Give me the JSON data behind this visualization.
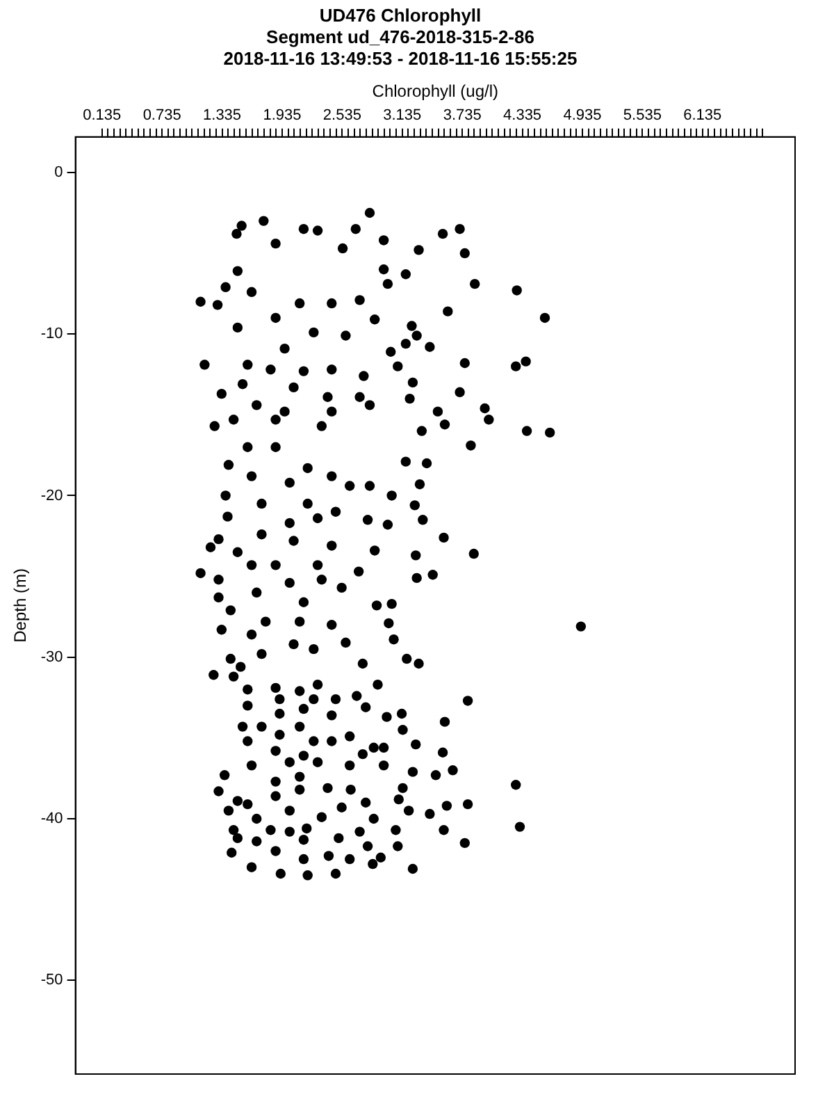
{
  "chart_data": {
    "type": "scatter",
    "title": "UD476 Chlorophyll",
    "subtitle": "Segment ud_476-2018-315-2-86\n2018-11-16 13:49:53 - 2018-11-16 15:55:25",
    "xlabel": "Chlorophyll (ug/l)",
    "ylabel": "Depth (m)",
    "xlim": [
      -0.13,
      7.06
    ],
    "ylim": [
      -55.8,
      2.2
    ],
    "xticks": [
      0.135,
      {
        "value": 0.195,
        "label": null
      },
      {
        "value": 0.255,
        "label": null
      },
      {
        "value": 0.315,
        "label": null
      },
      {
        "value": 0.375,
        "label": null
      },
      {
        "value": 0.435,
        "label": null
      },
      {
        "value": 0.495,
        "label": null
      },
      {
        "value": 0.555,
        "label": null
      },
      {
        "value": 0.615,
        "label": null
      },
      {
        "value": 0.675,
        "label": null
      },
      0.735,
      {
        "value": 0.795,
        "label": null
      },
      {
        "value": 0.855,
        "label": null
      },
      {
        "value": 0.915,
        "label": null
      },
      {
        "value": 0.975,
        "label": null
      },
      {
        "value": 1.035,
        "label": null
      },
      {
        "value": 1.095,
        "label": null
      },
      {
        "value": 1.155,
        "label": null
      },
      {
        "value": 1.215,
        "label": null
      },
      {
        "value": 1.275,
        "label": null
      },
      1.335,
      {
        "value": 1.395,
        "label": null
      },
      {
        "value": 1.455,
        "label": null
      },
      {
        "value": 1.515,
        "label": null
      },
      {
        "value": 1.575,
        "label": null
      },
      {
        "value": 1.635,
        "label": null
      },
      {
        "value": 1.695,
        "label": null
      },
      {
        "value": 1.755,
        "label": null
      },
      {
        "value": 1.815,
        "label": null
      },
      {
        "value": 1.875,
        "label": null
      },
      1.935,
      {
        "value": 1.995,
        "label": null
      },
      {
        "value": 2.055,
        "label": null
      },
      {
        "value": 2.115,
        "label": null
      },
      {
        "value": 2.175,
        "label": null
      },
      {
        "value": 2.235,
        "label": null
      },
      {
        "value": 2.295,
        "label": null
      },
      {
        "value": 2.355,
        "label": null
      },
      {
        "value": 2.415,
        "label": null
      },
      {
        "value": 2.475,
        "label": null
      },
      2.535,
      {
        "value": 2.595,
        "label": null
      },
      {
        "value": 2.655,
        "label": null
      },
      {
        "value": 2.715,
        "label": null
      },
      {
        "value": 2.775,
        "label": null
      },
      {
        "value": 2.835,
        "label": null
      },
      {
        "value": 2.895,
        "label": null
      },
      {
        "value": 2.955,
        "label": null
      },
      {
        "value": 3.015,
        "label": null
      },
      {
        "value": 3.075,
        "label": null
      },
      3.135,
      {
        "value": 3.195,
        "label": null
      },
      {
        "value": 3.255,
        "label": null
      },
      {
        "value": 3.315,
        "label": null
      },
      {
        "value": 3.375,
        "label": null
      },
      {
        "value": 3.435,
        "label": null
      },
      {
        "value": 3.495,
        "label": null
      },
      {
        "value": 3.555,
        "label": null
      },
      {
        "value": 3.615,
        "label": null
      },
      {
        "value": 3.675,
        "label": null
      },
      3.735,
      {
        "value": 3.795,
        "label": null
      },
      {
        "value": 3.855,
        "label": null
      },
      {
        "value": 3.915,
        "label": null
      },
      {
        "value": 3.975,
        "label": null
      },
      {
        "value": 4.035,
        "label": null
      },
      {
        "value": 4.095,
        "label": null
      },
      {
        "value": 4.155,
        "label": null
      },
      {
        "value": 4.215,
        "label": null
      },
      {
        "value": 4.275,
        "label": null
      },
      4.335,
      {
        "value": 4.395,
        "label": null
      },
      {
        "value": 4.455,
        "label": null
      },
      {
        "value": 4.515,
        "label": null
      },
      {
        "value": 4.575,
        "label": null
      },
      {
        "value": 4.635,
        "label": null
      },
      {
        "value": 4.695,
        "label": null
      },
      {
        "value": 4.755,
        "label": null
      },
      {
        "value": 4.815,
        "label": null
      },
      {
        "value": 4.875,
        "label": null
      },
      4.935,
      {
        "value": 4.995,
        "label": null
      },
      {
        "value": 5.055,
        "label": null
      },
      {
        "value": 5.115,
        "label": null
      },
      {
        "value": 5.175,
        "label": null
      },
      {
        "value": 5.235,
        "label": null
      },
      {
        "value": 5.295,
        "label": null
      },
      {
        "value": 5.355,
        "label": null
      },
      {
        "value": 5.415,
        "label": null
      },
      {
        "value": 5.475,
        "label": null
      },
      5.535,
      {
        "value": 5.595,
        "label": null
      },
      {
        "value": 5.655,
        "label": null
      },
      {
        "value": 5.715,
        "label": null
      },
      {
        "value": 5.775,
        "label": null
      },
      {
        "value": 5.835,
        "label": null
      },
      {
        "value": 5.895,
        "label": null
      },
      {
        "value": 5.955,
        "label": null
      },
      {
        "value": 6.015,
        "label": null
      },
      {
        "value": 6.075,
        "label": null
      },
      6.135,
      {
        "value": 6.195,
        "label": null
      },
      {
        "value": 6.255,
        "label": null
      },
      {
        "value": 6.315,
        "label": null
      },
      {
        "value": 6.375,
        "label": null
      },
      {
        "value": 6.435,
        "label": null
      },
      {
        "value": 6.495,
        "label": null
      },
      {
        "value": 6.555,
        "label": null
      },
      {
        "value": 6.615,
        "label": null
      },
      {
        "value": 6.675,
        "label": null
      },
      {
        "value": 6.735,
        "label": null
      }
    ],
    "yticks": [
      0,
      -10,
      -20,
      -30,
      -40,
      -50
    ],
    "grid": false,
    "legend": false,
    "marker": "circle",
    "series": [
      {
        "color": "#000000",
        "x": [
          2.81,
          1.53,
          1.75,
          3.54,
          3.71,
          3.76,
          3.3,
          1.12,
          1.29,
          4.28,
          4.56,
          3.86,
          3.59,
          1.16,
          1.33,
          1.26,
          4.37,
          4.27,
          4.61,
          4.38,
          3.76,
          3.71,
          3.96,
          4.0,
          3.17,
          2.99,
          2.86,
          3.23,
          3.28,
          3.17,
          3.41,
          3.02,
          3.09,
          3.24,
          3.21,
          3.49,
          3.33,
          3.56,
          1.48,
          1.87,
          2.15,
          2.29,
          2.54,
          2.67,
          2.95,
          2.95,
          1.49,
          1.37,
          1.63,
          2.11,
          2.43,
          2.71,
          1.49,
          1.87,
          2.25,
          2.57,
          1.96,
          1.59,
          1.82,
          2.15,
          2.43,
          1.54,
          2.05,
          2.39,
          1.68,
          1.96,
          2.43,
          2.81,
          1.45,
          1.87,
          2.33,
          2.71,
          2.75,
          3.82,
          3.38,
          3.17,
          3.31,
          3.26,
          3.34,
          3.55,
          3.85,
          3.27,
          3.28,
          3.44,
          4.92,
          3.03,
          3.0,
          3.05,
          3.18,
          3.3,
          2.86,
          2.79,
          3.03,
          2.81,
          2.99,
          2.7,
          2.88,
          2.74,
          1.12,
          1.22,
          1.3,
          1.39,
          1.37,
          1.4,
          1.3,
          1.3,
          1.33,
          1.42,
          1.42,
          1.59,
          1.87,
          2.19,
          2.43,
          1.63,
          2.01,
          2.61,
          1.73,
          2.19,
          2.47,
          2.01,
          2.29,
          1.73,
          2.05,
          2.43,
          1.49,
          1.87,
          2.29,
          1.63,
          2.01,
          2.33,
          1.68,
          2.15,
          2.53,
          1.77,
          2.11,
          2.43,
          1.63,
          2.05,
          2.57,
          1.73,
          2.25,
          3.79,
          3.56,
          3.54,
          3.64,
          3.47,
          3.24,
          4.27,
          4.31,
          3.79,
          3.58,
          3.41,
          3.55,
          3.76,
          3.24,
          3.2,
          3.14,
          3.1,
          3.07,
          3.09,
          3.27,
          3.14,
          3.13,
          2.98,
          2.95,
          2.85,
          2.74,
          2.95,
          2.89,
          2.92,
          2.84,
          2.79,
          2.71,
          2.77,
          2.85,
          2.62,
          2.61,
          2.61,
          2.77,
          2.68,
          2.47,
          2.19,
          1.92,
          1.63,
          1.43,
          1.68,
          1.87,
          2.15,
          2.4,
          2.61,
          2.5,
          1.25,
          1.45,
          1.36,
          1.3,
          1.49,
          1.4,
          1.45,
          1.52,
          1.59,
          1.87,
          2.11,
          2.29,
          2.47,
          1.59,
          1.91,
          2.25,
          1.91,
          2.15,
          2.43,
          1.54,
          1.73,
          1.91,
          2.11,
          1.59,
          2.25,
          2.43,
          1.87,
          2.15,
          1.63,
          2.01,
          2.29,
          1.87,
          2.11,
          2.39,
          1.59,
          1.87,
          2.11,
          2.53,
          1.68,
          2.01,
          2.33,
          1.82,
          2.01,
          2.18,
          1.49,
          2.15
        ],
        "values": [
          -2.5,
          -3.3,
          -3.0,
          -3.8,
          -3.5,
          -5.0,
          -4.8,
          -8.0,
          -8.2,
          -7.3,
          -9.0,
          -6.9,
          -8.6,
          -11.9,
          -13.7,
          -15.7,
          -11.7,
          -12.0,
          -16.1,
          -16.0,
          -11.8,
          -13.6,
          -14.6,
          -15.3,
          -6.3,
          -6.9,
          -9.1,
          -9.5,
          -10.1,
          -10.6,
          -10.8,
          -11.1,
          -12.0,
          -13.0,
          -14.0,
          -14.8,
          -16.0,
          -15.6,
          -3.8,
          -4.4,
          -3.5,
          -3.6,
          -4.7,
          -3.5,
          -4.2,
          -6.0,
          -6.1,
          -7.1,
          -7.4,
          -8.1,
          -8.1,
          -7.9,
          -9.6,
          -9.0,
          -9.9,
          -10.1,
          -10.9,
          -11.9,
          -12.2,
          -12.3,
          -12.2,
          -13.1,
          -13.3,
          -13.9,
          -14.4,
          -14.8,
          -14.8,
          -14.4,
          -15.3,
          -15.3,
          -15.7,
          -13.9,
          -12.6,
          -16.9,
          -18.0,
          -17.9,
          -19.3,
          -20.6,
          -21.5,
          -22.6,
          -23.6,
          -23.7,
          -25.1,
          -24.9,
          -28.1,
          -26.7,
          -27.9,
          -28.9,
          -30.1,
          -30.4,
          -23.4,
          -21.5,
          -20.0,
          -19.4,
          -21.8,
          -24.7,
          -26.8,
          -30.4,
          -24.8,
          -23.2,
          -22.7,
          -21.3,
          -20.0,
          -18.1,
          -25.2,
          -26.3,
          -28.3,
          -30.1,
          -27.1,
          -17.0,
          -17.0,
          -18.3,
          -18.8,
          -18.8,
          -19.2,
          -19.4,
          -20.5,
          -20.5,
          -21.0,
          -21.7,
          -21.4,
          -22.4,
          -22.8,
          -23.1,
          -23.5,
          -24.3,
          -24.3,
          -24.3,
          -25.4,
          -25.2,
          -26.0,
          -26.6,
          -25.7,
          -27.8,
          -27.8,
          -28.0,
          -28.6,
          -29.2,
          -29.1,
          -29.8,
          -29.5,
          -32.7,
          -34.0,
          -35.9,
          -37.0,
          -37.3,
          -37.1,
          -37.9,
          -40.5,
          -39.1,
          -39.2,
          -39.7,
          -40.7,
          -41.5,
          -43.1,
          -39.5,
          -38.1,
          -38.8,
          -40.7,
          -41.7,
          -35.4,
          -34.5,
          -33.5,
          -33.7,
          -35.6,
          -35.6,
          -36.0,
          -36.7,
          -31.7,
          -42.4,
          -42.8,
          -41.7,
          -40.8,
          -39.0,
          -40.0,
          -38.2,
          -36.7,
          -34.9,
          -33.1,
          -32.4,
          -43.4,
          -43.5,
          -43.4,
          -43.0,
          -42.1,
          -41.4,
          -42.0,
          -42.5,
          -42.3,
          -42.5,
          -41.2,
          -31.1,
          -31.2,
          -37.3,
          -38.3,
          -38.9,
          -39.5,
          -40.7,
          -30.6,
          -32.0,
          -31.9,
          -32.1,
          -31.7,
          -32.6,
          -33.0,
          -32.6,
          -32.6,
          -33.5,
          -33.2,
          -33.6,
          -34.3,
          -34.3,
          -34.8,
          -34.3,
          -35.2,
          -35.2,
          -35.2,
          -35.8,
          -36.1,
          -36.7,
          -36.5,
          -36.5,
          -37.7,
          -37.4,
          -38.1,
          -39.1,
          -38.6,
          -38.2,
          -39.3,
          -40.0,
          -39.5,
          -39.9,
          -40.7,
          -40.8,
          -40.6,
          -41.2,
          -41.3
        ]
      }
    ]
  }
}
